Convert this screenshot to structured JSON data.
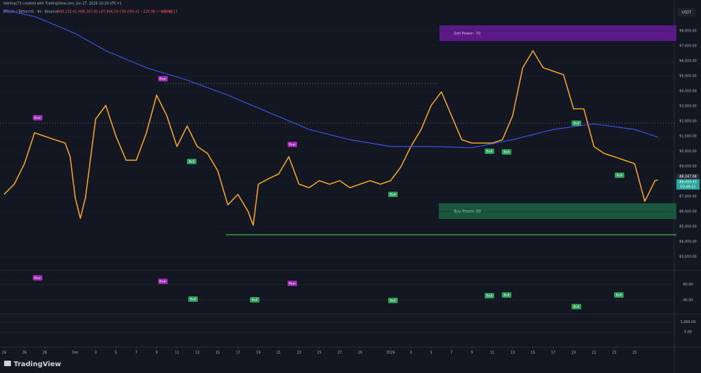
{
  "header": {
    "author_line": "telemac73 created with TradingView.com, Jan 27, 2026 10:10 UTC+1",
    "symbol": "Bitcoin / TetherUS · 4h · Binance",
    "ohlc": "O88,233.41 H88,397.65 L87,896.59 C88,099.43 −220.98 (−0.25%)",
    "volume": "Vol 40.13",
    "currency": "USDT",
    "logo": "TradingView"
  },
  "chart_data": {
    "type": "line",
    "x": [
      0,
      1,
      2,
      3,
      4,
      5,
      6,
      6.5,
      7,
      7.5,
      8,
      9,
      10,
      11,
      12,
      13,
      14,
      15,
      16,
      17,
      18,
      19,
      20,
      21,
      22,
      23,
      24,
      24.5,
      25,
      26,
      27,
      28,
      29,
      30,
      31,
      32,
      33,
      34,
      35,
      36,
      37,
      38,
      39,
      40,
      41,
      42,
      43,
      44,
      45,
      46,
      47,
      48,
      49,
      50,
      51,
      52,
      53,
      54,
      55,
      56,
      57,
      58,
      59,
      60,
      61,
      62,
      63,
      64,
      64.3
    ],
    "series": [
      {
        "color": "#f5a623",
        "values": [
          87140,
          87820,
          89180,
          91230,
          91000,
          90770,
          90550,
          89640,
          86910,
          85550,
          86910,
          92140,
          93050,
          91000,
          89410,
          89410,
          91230,
          93730,
          92360,
          90320,
          91680,
          90320,
          89860,
          88730,
          86450,
          87140,
          86000,
          85090,
          87820,
          88180,
          88500,
          89640,
          87820,
          87590,
          88050,
          87820,
          88050,
          87590,
          87820,
          88050,
          87820,
          88050,
          88950,
          90320,
          91450,
          93050,
          93950,
          92360,
          90770,
          90550,
          90550,
          90550,
          90770,
          92360,
          95550,
          96680,
          95550,
          95320,
          95090,
          92820,
          92820,
          90320,
          89860,
          89640,
          89410,
          89180,
          86680,
          88050,
          88099.43
        ]
      },
      {
        "color": "#3d5afe",
        "values": [
          99400,
          99250,
          99100,
          98950,
          98670,
          98390,
          98100,
          97960,
          97820,
          97630,
          97440,
          97060,
          96680,
          96400,
          96110,
          95830,
          95550,
          95340,
          95140,
          94940,
          94730,
          94480,
          94230,
          93980,
          93730,
          93450,
          93160,
          93020,
          92880,
          92590,
          92310,
          92020,
          91740,
          91450,
          91280,
          91110,
          90940,
          90770,
          90660,
          90550,
          90430,
          90320,
          90320,
          90320,
          90320,
          90320,
          90300,
          90280,
          90260,
          90240,
          90370,
          90500,
          90640,
          90770,
          90940,
          91110,
          91280,
          91450,
          91540,
          91640,
          91730,
          91820,
          91730,
          91640,
          91540,
          91450,
          91230,
          91000,
          90930
        ]
      }
    ],
    "xlim": [
      -0.4,
      65.9
    ],
    "xticks": [
      {
        "value": 0,
        "label": "24"
      },
      {
        "value": 2,
        "label": "26"
      },
      {
        "value": 4,
        "label": "28"
      },
      {
        "value": 7,
        "label": "Dec"
      },
      {
        "value": 9,
        "label": "3"
      },
      {
        "value": 11,
        "label": "5"
      },
      {
        "value": 13,
        "label": "7"
      },
      {
        "value": 15,
        "label": "9"
      },
      {
        "value": 17,
        "label": "11"
      },
      {
        "value": 19,
        "label": "13"
      },
      {
        "value": 21,
        "label": "15"
      },
      {
        "value": 23,
        "label": "17"
      },
      {
        "value": 25,
        "label": "19"
      },
      {
        "value": 27,
        "label": "21"
      },
      {
        "value": 29,
        "label": "23"
      },
      {
        "value": 31,
        "label": "25"
      },
      {
        "value": 33,
        "label": "27"
      },
      {
        "value": 35,
        "label": "29"
      },
      {
        "value": 38,
        "label": "2026"
      },
      {
        "value": 40,
        "label": "3"
      },
      {
        "value": 42,
        "label": "5"
      },
      {
        "value": 44,
        "label": "7"
      },
      {
        "value": 46,
        "label": "9"
      },
      {
        "value": 48,
        "label": "11"
      },
      {
        "value": 50,
        "label": "13"
      },
      {
        "value": 52,
        "label": "15"
      },
      {
        "value": 54,
        "label": "17"
      },
      {
        "value": 56,
        "label": "19"
      },
      {
        "value": 58,
        "label": "21"
      },
      {
        "value": 60,
        "label": "23"
      },
      {
        "value": 62,
        "label": "25"
      }
    ],
    "ylim": [
      82100,
      99500
    ],
    "yticks": [
      {
        "value": 83000,
        "label": "83,000.00"
      },
      {
        "value": 84000,
        "label": "84,000.00"
      },
      {
        "value": 85000,
        "label": "85,000.00"
      },
      {
        "value": 86000,
        "label": "86,000.00"
      },
      {
        "value": 87000,
        "label": "87,000.00"
      },
      {
        "value": 88000,
        "label": "88,000.00"
      },
      {
        "value": 89000,
        "label": "89,000.00"
      },
      {
        "value": 90000,
        "label": "90,000.00"
      },
      {
        "value": 91000,
        "label": "91,000.00"
      },
      {
        "value": 92000,
        "label": "92,000.00"
      },
      {
        "value": 93000,
        "label": "93,000.00"
      },
      {
        "value": 94000,
        "label": "94,000.00"
      },
      {
        "value": 95000,
        "label": "95,000.00"
      },
      {
        "value": 96000,
        "label": "96,000.00"
      },
      {
        "value": 97000,
        "label": "97,000.00"
      },
      {
        "value": 98000,
        "label": "98,000.00"
      }
    ],
    "price_labels": {
      "last": "88,247.08",
      "close": "88,099.43",
      "countdown": "02:49:15"
    },
    "zones": {
      "sell": "Sell Power: 70",
      "buy": "Buy Power: 60"
    },
    "main_labels": [
      "Bear",
      "Bear",
      "Bear",
      "Bull",
      "Bull",
      "Bull",
      "Bull",
      "Bull",
      "Bull"
    ]
  },
  "rsi": {
    "ylim": [
      23,
      77
    ],
    "yticks": [
      {
        "value": 60,
        "label": "60.00"
      },
      {
        "value": 40,
        "label": "40.00"
      }
    ],
    "labels": [
      "Bear",
      "Bear",
      "Bear",
      "Bull",
      "Bull",
      "Bull",
      "Bull",
      "Bull",
      "Bull",
      "Bull"
    ]
  },
  "macd": {
    "ylim": [
      -1400,
      1700
    ],
    "yticks": [
      {
        "value": 1000,
        "label": "1,000.00"
      },
      {
        "value": 0,
        "label": "0.00"
      }
    ]
  }
}
